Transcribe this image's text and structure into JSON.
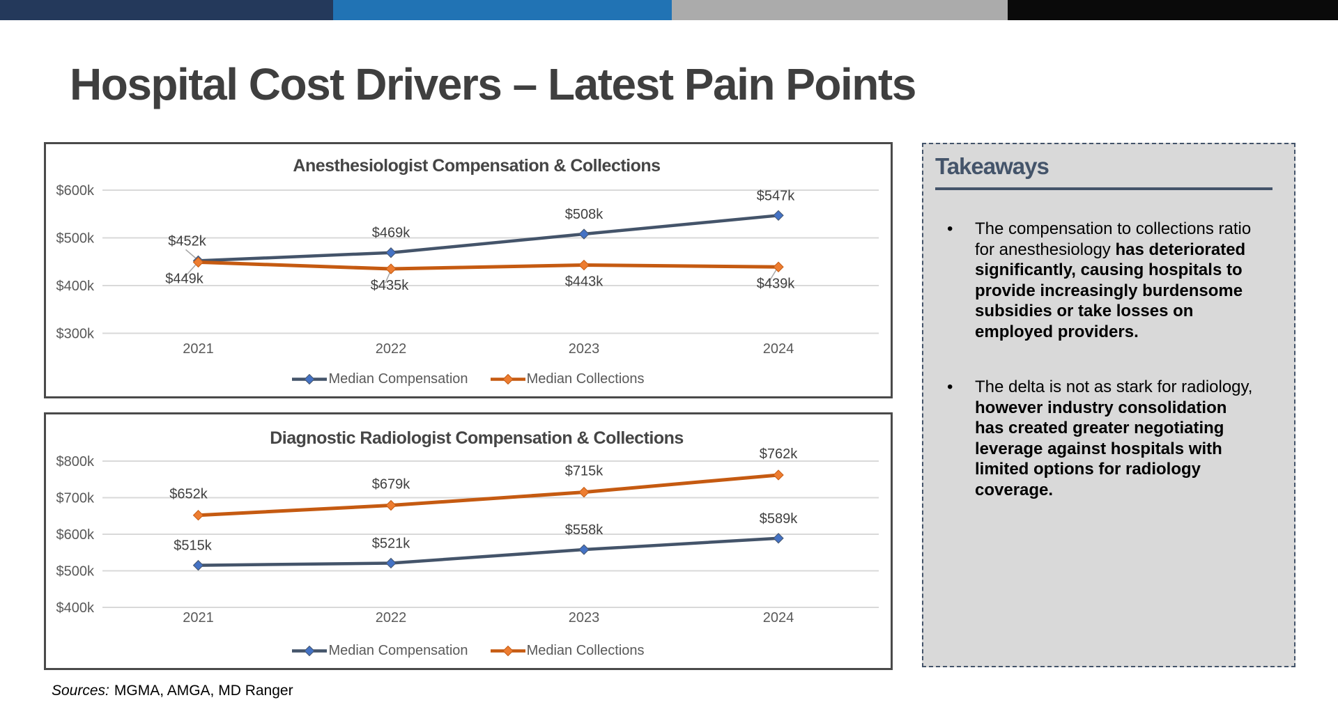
{
  "slide_title": "Hospital Cost Drivers – Latest Pain Points",
  "accent_bar": {
    "colors": [
      "#24395B",
      "#2173B4",
      "#ABABAB",
      "#0A0A0A"
    ]
  },
  "chart_data": [
    {
      "type": "line",
      "title": "Anesthesiologist Compensation & Collections",
      "categories": [
        "2021",
        "2022",
        "2023",
        "2024"
      ],
      "series": [
        {
          "name": "Median Compensation",
          "values": [
            452,
            469,
            508,
            547
          ],
          "data_labels": [
            "$452k",
            "$469k",
            "$508k",
            "$547k"
          ],
          "line_color": "#44546A",
          "marker_color": "#4472C4"
        },
        {
          "name": "Median Collections",
          "values": [
            449,
            435,
            443,
            439
          ],
          "data_labels": [
            "$449k",
            "$435k",
            "$443k",
            "$439k"
          ],
          "line_color": "#C55A11",
          "marker_color": "#ED7D31"
        }
      ],
      "xlabel": "",
      "ylabel": "",
      "ylim": [
        300,
        650
      ],
      "yticks": [
        600,
        500,
        400,
        300
      ],
      "ytick_labels": [
        "$600k",
        "$500k",
        "$400k",
        "$300k"
      ],
      "grid": true,
      "legend_position": "bottom",
      "gridline_color": "#D9D9D9",
      "leader_line_color": "#A6A6A6"
    },
    {
      "type": "line",
      "title": "Diagnostic Radiologist Compensation & Collections",
      "categories": [
        "2021",
        "2022",
        "2023",
        "2024"
      ],
      "series": [
        {
          "name": "Median Compensation",
          "values": [
            515,
            521,
            558,
            589
          ],
          "data_labels": [
            "$515k",
            "$521k",
            "$558k",
            "$589k"
          ],
          "line_color": "#44546A",
          "marker_color": "#4472C4"
        },
        {
          "name": "Median Collections",
          "values": [
            652,
            679,
            715,
            762
          ],
          "data_labels": [
            "$652k",
            "$679k",
            "$715k",
            "$762k"
          ],
          "line_color": "#C55A11",
          "marker_color": "#ED7D31"
        }
      ],
      "xlabel": "",
      "ylabel": "",
      "ylim": [
        400,
        850
      ],
      "yticks": [
        800,
        700,
        600,
        500,
        400
      ],
      "ytick_labels": [
        "$800k",
        "$700k",
        "$600k",
        "$500k",
        "$400k"
      ],
      "grid": true,
      "legend_position": "bottom",
      "gridline_color": "#D9D9D9",
      "leader_line_color": "#A6A6A6"
    }
  ],
  "takeaways": {
    "heading": "Takeaways",
    "accent_color": "#44546A",
    "background": "#D9D9D9",
    "bullets": [
      {
        "runs": [
          {
            "text": "The compensation to collections ratio for anesthesiology ",
            "bold": false
          },
          {
            "text": "has deteriorated significantly, causing hospitals to provide increasingly burdensome subsidies or take losses on employed providers.",
            "bold": true
          }
        ]
      },
      {
        "runs": [
          {
            "text": "The delta is not as stark for radiology, ",
            "bold": false
          },
          {
            "text": "however industry consolidation has created greater negotiating leverage against hospitals with limited options for radiology coverage.",
            "bold": true
          }
        ]
      }
    ]
  },
  "sources": {
    "label": "Sources:",
    "text": "MGMA, AMGA, MD Ranger"
  }
}
